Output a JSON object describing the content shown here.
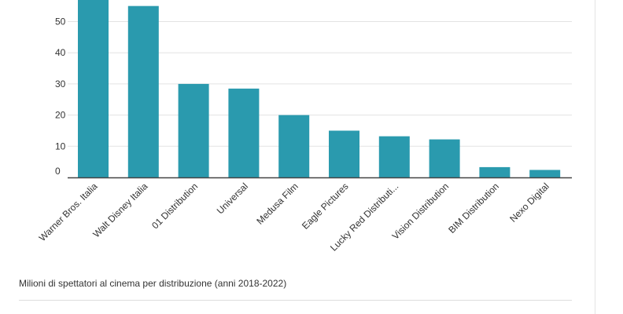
{
  "caption": "Milioni di spettatori al cinema per distribuzione (anni 2018-2022)",
  "colors": {
    "bar": "#2a9aae",
    "grid": "#e3e3e3",
    "axis": "#444444",
    "text": "#333333"
  },
  "chart_data": {
    "type": "bar",
    "categories": [
      "Warner Bros. Italia",
      "Walt Disney Italia",
      "01 Distribution",
      "Universal",
      "Medusa Film",
      "Eagle Pictures",
      "Lucky Red Distributi...",
      "Vision Distribution",
      "BIM Distribution",
      "Nexo Digital"
    ],
    "values": [
      57,
      55,
      30,
      28.5,
      20,
      15,
      13.2,
      12.2,
      3.3,
      2.4
    ],
    "yticks": [
      0,
      10,
      20,
      30,
      40,
      50
    ],
    "ylim": [
      0,
      57
    ],
    "title": "",
    "xlabel": "",
    "ylabel": "",
    "grid": true
  }
}
